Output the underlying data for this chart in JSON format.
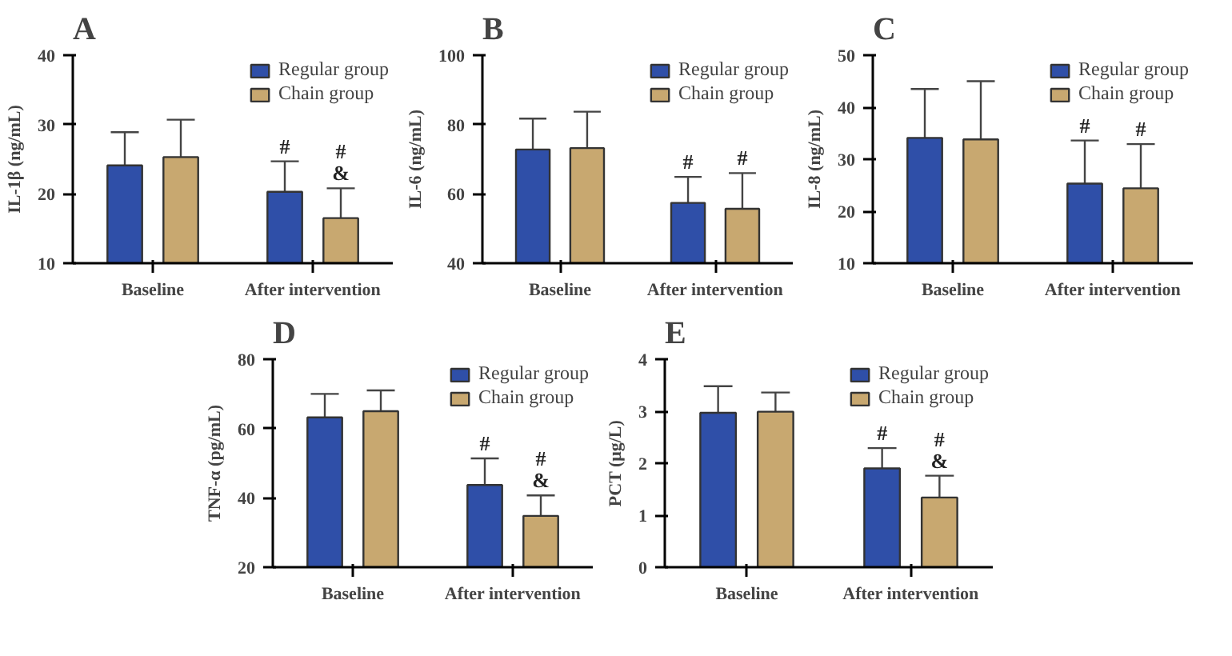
{
  "chart_data": [
    {
      "type": "bar",
      "title": "A",
      "ylabel": "IL-1β (ng/mL)",
      "categories": [
        "Baseline",
        "After intervention"
      ],
      "ylim": [
        10,
        40
      ],
      "yticks": [
        10,
        20,
        30,
        40
      ],
      "grid": false,
      "legend": "top right",
      "series": [
        {
          "name": "Regular group",
          "color": "#2f4fa8",
          "values": [
            24.1,
            20.3
          ],
          "errors": [
            4.8,
            4.4
          ],
          "value_labels": [
            null,
            "#"
          ]
        },
        {
          "name": "Chain group",
          "color": "#c8a870",
          "values": [
            25.3,
            16.5
          ],
          "errors": [
            5.4,
            4.3
          ],
          "value_labels": [
            null,
            "#\n&"
          ]
        }
      ]
    },
    {
      "type": "bar",
      "title": "B",
      "ylabel": "IL-6 (ng/mL)",
      "categories": [
        "Baseline",
        "After intervention"
      ],
      "ylim": [
        40,
        100
      ],
      "yticks": [
        40,
        60,
        80,
        100
      ],
      "grid": false,
      "legend": "top right",
      "series": [
        {
          "name": "Regular group",
          "color": "#2f4fa8",
          "values": [
            72.8,
            57.4
          ],
          "errors": [
            8.9,
            7.5
          ],
          "value_labels": [
            null,
            "#"
          ]
        },
        {
          "name": "Chain group",
          "color": "#c8a870",
          "values": [
            73.2,
            55.7
          ],
          "errors": [
            10.5,
            10.3
          ],
          "value_labels": [
            null,
            "#"
          ]
        }
      ]
    },
    {
      "type": "bar",
      "title": "C",
      "ylabel": "IL-8 (ng/mL)",
      "categories": [
        "Baseline",
        "After intervention"
      ],
      "ylim": [
        10,
        50
      ],
      "yticks": [
        10,
        20,
        30,
        40,
        50
      ],
      "grid": false,
      "legend": "top right",
      "series": [
        {
          "name": "Regular group",
          "color": "#2f4fa8",
          "values": [
            34.1,
            25.3
          ],
          "errors": [
            9.4,
            8.3
          ],
          "value_labels": [
            null,
            "#"
          ]
        },
        {
          "name": "Chain group",
          "color": "#c8a870",
          "values": [
            33.8,
            24.4
          ],
          "errors": [
            11.2,
            8.5
          ],
          "value_labels": [
            null,
            "#"
          ]
        }
      ]
    },
    {
      "type": "bar",
      "title": "D",
      "ylabel": "TNF-α (pg/mL)",
      "categories": [
        "Baseline",
        "After intervention"
      ],
      "ylim": [
        20,
        80
      ],
      "yticks": [
        20,
        40,
        60,
        80
      ],
      "grid": false,
      "legend": "top right",
      "series": [
        {
          "name": "Regular group",
          "color": "#2f4fa8",
          "values": [
            63.2,
            43.7
          ],
          "errors": [
            6.8,
            7.7
          ],
          "value_labels": [
            null,
            "#"
          ]
        },
        {
          "name": "Chain group",
          "color": "#c8a870",
          "values": [
            65,
            34.8
          ],
          "errors": [
            6,
            5.9
          ],
          "value_labels": [
            null,
            "#\n&"
          ]
        }
      ]
    },
    {
      "type": "bar",
      "title": "E",
      "ylabel": "PCT (μg/L)",
      "categories": [
        "Baseline",
        "After intervention"
      ],
      "ylim": [
        0,
        4
      ],
      "yticks": [
        0,
        1,
        2,
        3,
        4
      ],
      "grid": false,
      "legend": "top right",
      "series": [
        {
          "name": "Regular group",
          "color": "#2f4fa8",
          "values": [
            2.97,
            1.9
          ],
          "errors": [
            0.51,
            0.39
          ],
          "value_labels": [
            null,
            "#"
          ]
        },
        {
          "name": "Chain group",
          "color": "#c8a870",
          "values": [
            2.99,
            1.34
          ],
          "errors": [
            0.37,
            0.42
          ],
          "value_labels": [
            null,
            "#\n&"
          ]
        }
      ]
    }
  ]
}
